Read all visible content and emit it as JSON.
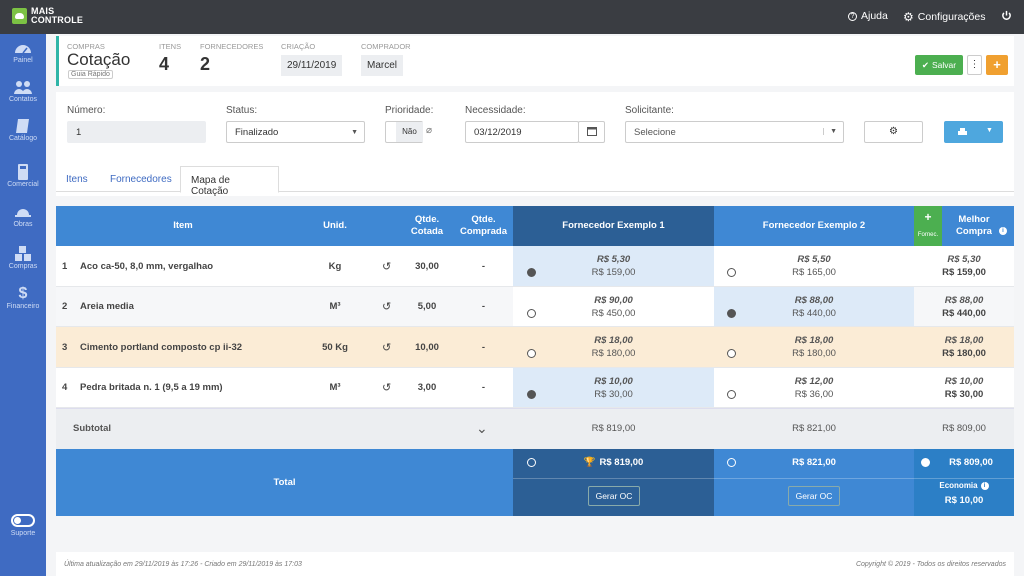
{
  "topbar": {
    "logo_line1": "MAIS",
    "logo_line2": "CONTROLE",
    "help": "Ajuda",
    "settings": "Configurações"
  },
  "sidebar": {
    "items": [
      {
        "label": "Painel",
        "icon": "dashboard-icon"
      },
      {
        "label": "Contatos",
        "icon": "contacts-icon"
      },
      {
        "label": "Catálogo",
        "icon": "book-icon"
      },
      {
        "label": "Comercial",
        "icon": "calculator-icon"
      },
      {
        "label": "Obras",
        "icon": "construction-icon"
      },
      {
        "label": "Compras",
        "icon": "cubes-icon"
      },
      {
        "label": "Financeiro",
        "icon": "dollar-icon"
      }
    ],
    "support": "Suporte"
  },
  "header": {
    "section_label": "COMPRAS",
    "title": "Cotação",
    "guide": "Guia Rápido",
    "itens_label": "ITENS",
    "itens_value": "4",
    "fornecedores_label": "FORNECEDORES",
    "fornecedores_value": "2",
    "criacao_label": "CRIAÇÃO",
    "criacao_value": "29/11/2019",
    "comprador_label": "COMPRADOR",
    "comprador_value": "Marcel",
    "save_label": "Salvar",
    "dots": "⋮",
    "plus": "+"
  },
  "form": {
    "numero_label": "Número:",
    "numero_value": "1",
    "status_label": "Status:",
    "status_value": "Finalizado",
    "prioridade_label": "Prioridade:",
    "prioridade_value": "Não",
    "necessidade_label": "Necessidade:",
    "necessidade_value": "03/12/2019",
    "solicitante_label": "Solicitante:",
    "solicitante_placeholder": "Selecione"
  },
  "tabs": [
    {
      "label": "Itens"
    },
    {
      "label": "Fornecedores"
    },
    {
      "label": "Mapa de Cotação"
    }
  ],
  "table": {
    "headers": {
      "item": "Item",
      "unid": "Unid.",
      "qtd_cotada": "Qtde. Cotada",
      "qtd_comprada": "Qtde. Comprada",
      "sup1": "Fornecedor Exemplo 1",
      "sup2": "Fornecedor Exemplo 2",
      "add": "+",
      "add_label": "Fornec.",
      "best": "Melhor Compra"
    },
    "rows": [
      {
        "num": "1",
        "name": "Aco ca-50, 8,0 mm, vergalhao",
        "unit": "Kg",
        "qty": "30,00",
        "bought": "-",
        "s1_unit": "R$ 5,30",
        "s1_total": "R$ 159,00",
        "s2_unit": "R$ 5,50",
        "s2_total": "R$ 165,00",
        "best_unit": "R$ 5,30",
        "best_total": "R$ 159,00"
      },
      {
        "num": "2",
        "name": "Areia media",
        "unit": "M³",
        "qty": "5,00",
        "bought": "-",
        "s1_unit": "R$ 90,00",
        "s1_total": "R$ 450,00",
        "s2_unit": "R$ 88,00",
        "s2_total": "R$ 440,00",
        "best_unit": "R$ 88,00",
        "best_total": "R$ 440,00"
      },
      {
        "num": "3",
        "name": "Cimento portland composto cp ii-32",
        "unit": "50 Kg",
        "qty": "10,00",
        "bought": "-",
        "s1_unit": "R$ 18,00",
        "s1_total": "R$ 180,00",
        "s2_unit": "R$ 18,00",
        "s2_total": "R$ 180,00",
        "best_unit": "R$ 18,00",
        "best_total": "R$ 180,00"
      },
      {
        "num": "4",
        "name": "Pedra britada n. 1 (9,5 a 19 mm)",
        "unit": "M³",
        "qty": "3,00",
        "bought": "-",
        "s1_unit": "R$ 10,00",
        "s1_total": "R$ 30,00",
        "s2_unit": "R$ 12,00",
        "s2_total": "R$ 36,00",
        "best_unit": "R$ 10,00",
        "best_total": "R$ 30,00"
      }
    ],
    "subtotal_label": "Subtotal",
    "subtotal_s1": "R$ 819,00",
    "subtotal_s2": "R$ 821,00",
    "subtotal_best": "R$ 809,00",
    "total_label": "Total",
    "total_s1": "R$ 819,00",
    "total_s2": "R$ 821,00",
    "total_best": "R$ 809,00",
    "gerar_oc": "Gerar OC",
    "economia_label": "Economia",
    "economia_value": "R$ 10,00"
  },
  "footer": {
    "updated": "Última atualização em 29/11/2019 às 17:26 - Criado em 29/11/2019 às 17:03",
    "copyright": "Copyright © 2019 - Todos os direitos reservados"
  },
  "colors": {
    "sidebar": "#3f6bc2",
    "topbar": "#3a3d42",
    "header_blue": "#3f88d4",
    "sup1_dark": "#2c5f95",
    "row_highlight": "#ddeaf8",
    "row_tie": "#fbecd6",
    "accent_green": "#4caf50"
  }
}
